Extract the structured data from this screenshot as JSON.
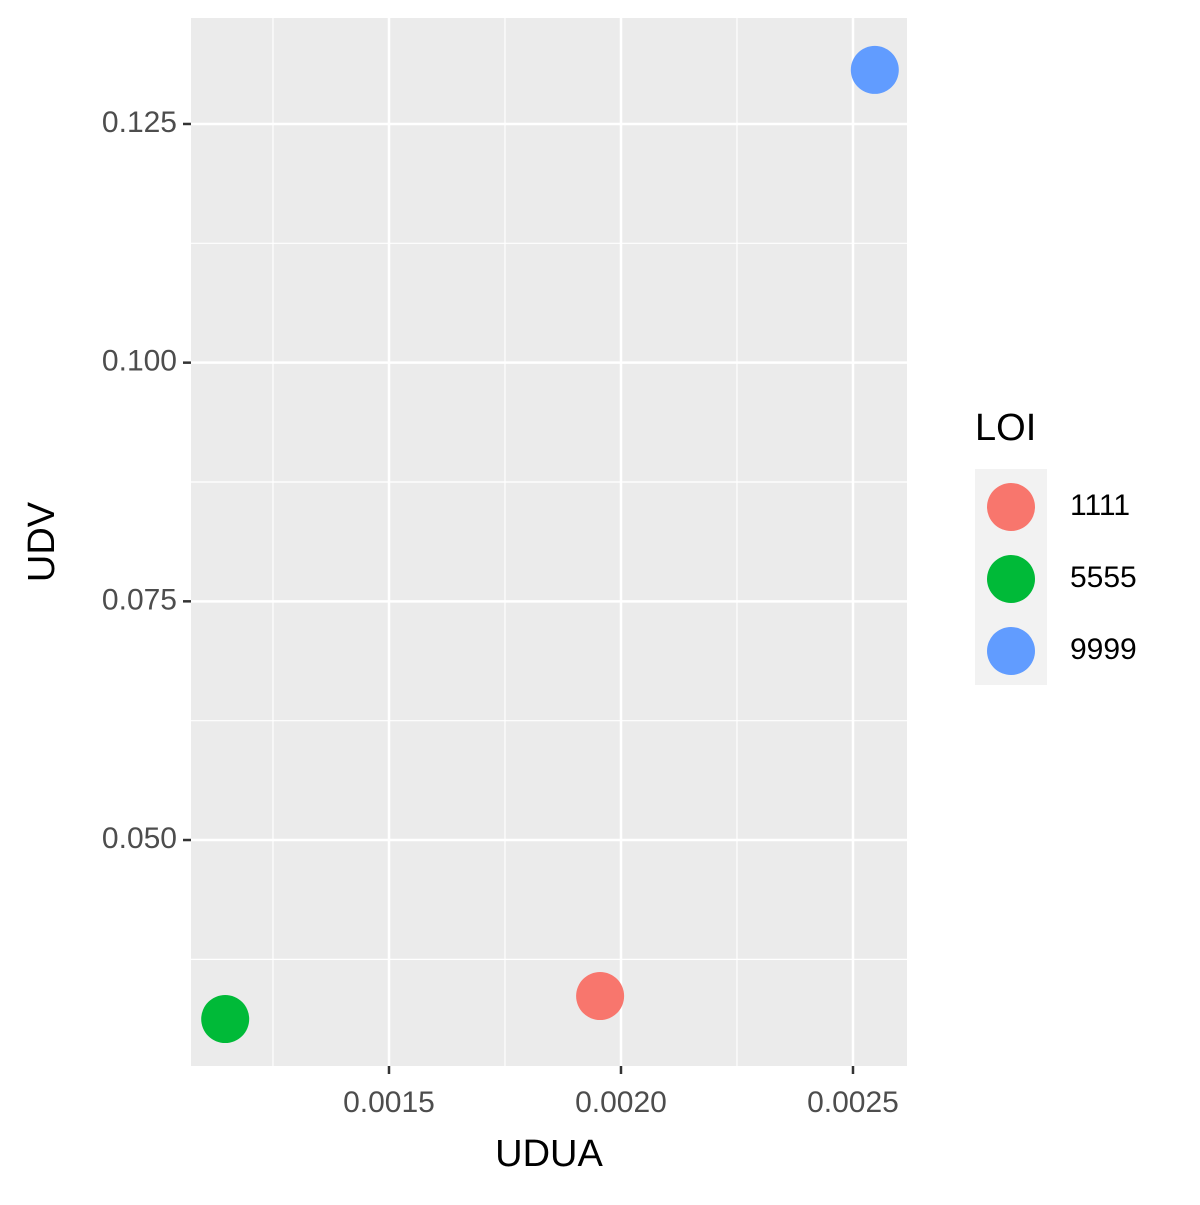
{
  "chart_data": {
    "type": "scatter",
    "x_label": "UDUA",
    "y_label": "UDV",
    "legend_title": "LOI",
    "legend_position": "right",
    "series": [
      {
        "name": "1111",
        "color": "#f8766d",
        "x": [
          0.001955
        ],
        "values": [
          0.03366
        ]
      },
      {
        "name": "5555",
        "color": "#00ba38",
        "x": [
          0.001147
        ],
        "values": [
          0.03125
        ]
      },
      {
        "name": "9999",
        "color": "#619cff",
        "x": [
          0.002547
        ],
        "values": [
          0.13066
        ]
      }
    ],
    "xlim": [
      0.0010733,
      0.0026164
    ],
    "xticks": [
      0.0015,
      {
        "value": 0.002,
        "label": "0.0020"
      },
      0.0025
    ],
    "xminor": [
      0.00125,
      0.00175,
      0.00225
    ],
    "ylim": [
      0.02633,
      0.1361
    ],
    "yticks": [
      {
        "value": 0.05,
        "label": "0.050"
      },
      0.075,
      {
        "value": 0.1,
        "label": "0.100"
      },
      0.125
    ],
    "yminor": [
      0.0375,
      0.0625,
      0.0875,
      0.1125
    ],
    "grid": true
  }
}
